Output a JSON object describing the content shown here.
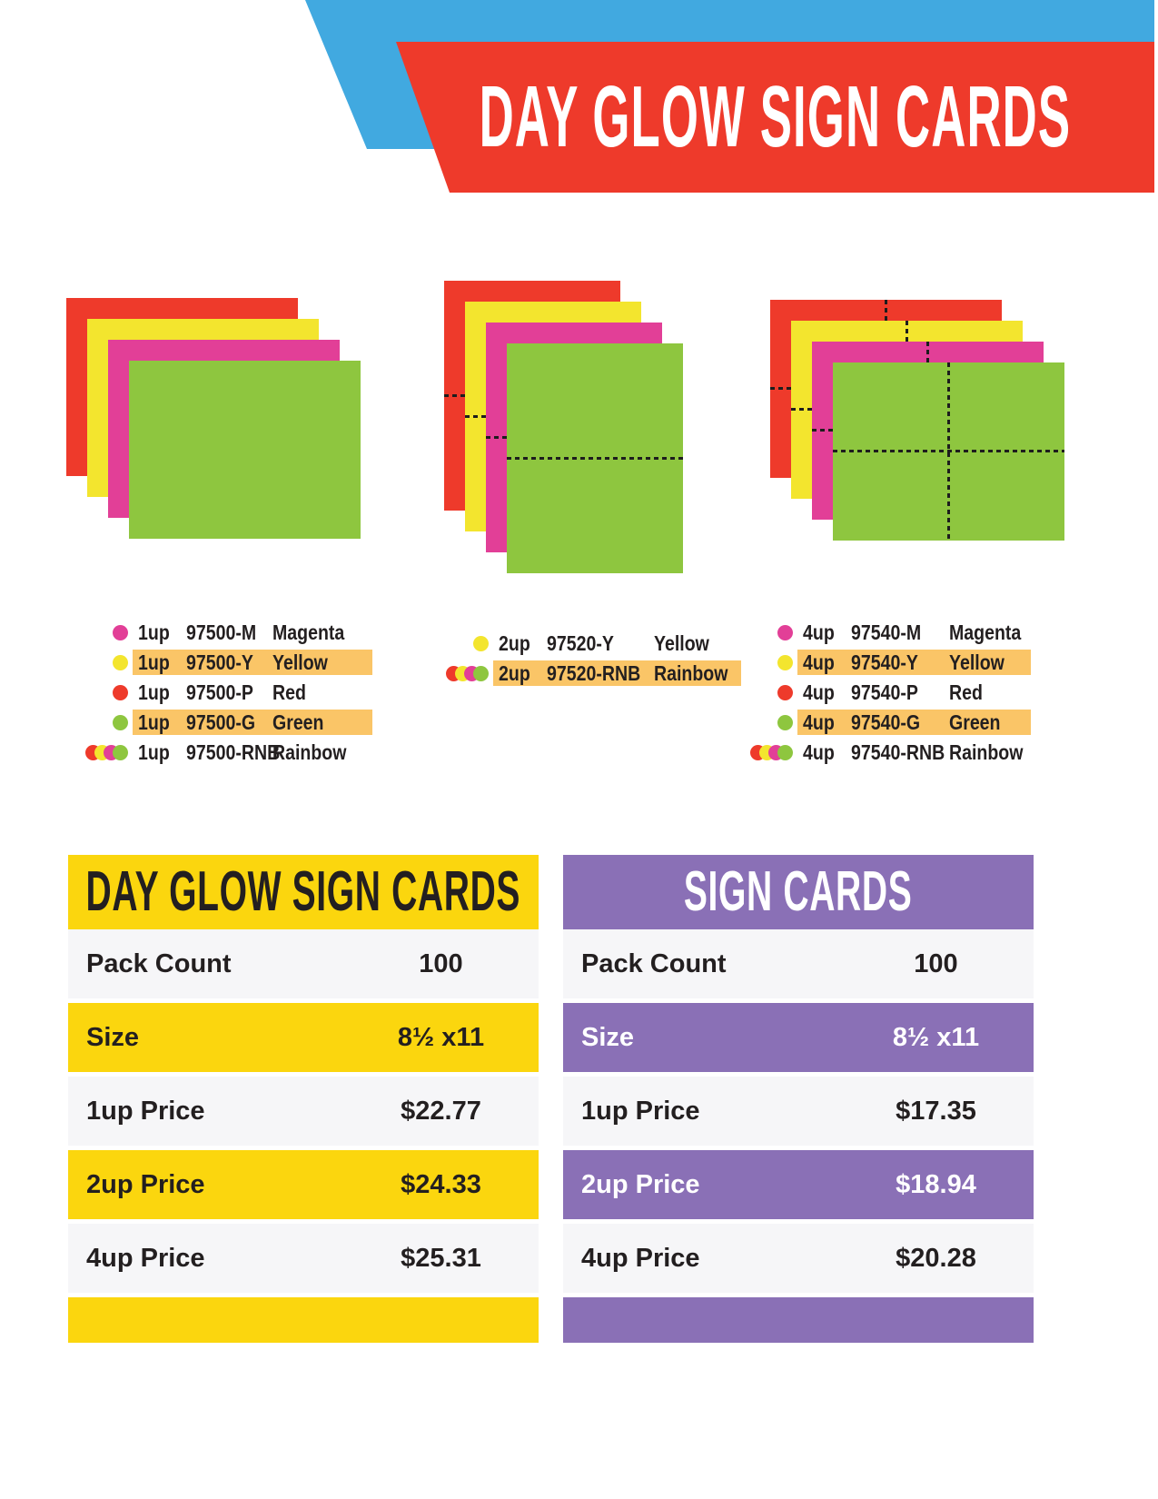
{
  "header": {
    "title": "DAY GLOW SIGN CARDS",
    "title_color": "#ffffff"
  },
  "colors": {
    "red": "#ee3a2b",
    "yellow": "#f3e52e",
    "magenta": "#e23f97",
    "green": "#8ec63f",
    "blue": "#41a9e0",
    "purple": "#8a70b6",
    "table_yellow": "#fbd60e",
    "highlight": "#fac567",
    "row_light": "#f6f6f8",
    "ink": "#231f20"
  },
  "card_order": [
    "red",
    "yellow",
    "magenta",
    "green"
  ],
  "stacks": [
    {
      "label": "1up",
      "orientation": "landscape",
      "dashes": "none"
    },
    {
      "label": "2up",
      "orientation": "portrait",
      "dashes": "horizontal"
    },
    {
      "label": "4up",
      "orientation": "landscape",
      "dashes": "cross"
    }
  ],
  "lists": [
    {
      "items": [
        {
          "dot": "magenta",
          "up": "1up",
          "sku": "97500-M",
          "color_name": "Magenta",
          "highlight": false
        },
        {
          "dot": "yellow",
          "up": "1up",
          "sku": "97500-Y",
          "color_name": "Yellow",
          "highlight": true
        },
        {
          "dot": "red",
          "up": "1up",
          "sku": "97500-P",
          "color_name": "Red",
          "highlight": false
        },
        {
          "dot": "green",
          "up": "1up",
          "sku": "97500-G",
          "color_name": "Green",
          "highlight": true
        },
        {
          "dot": "rainbow",
          "up": "1up",
          "sku": "97500-RNB",
          "color_name": "Rainbow",
          "highlight": false
        }
      ]
    },
    {
      "items": [
        {
          "dot": "yellow",
          "up": "2up",
          "sku": "97520-Y",
          "color_name": "Yellow",
          "highlight": false
        },
        {
          "dot": "rainbow",
          "up": "2up",
          "sku": "97520-RNB",
          "color_name": "Rainbow",
          "highlight": true
        }
      ]
    },
    {
      "items": [
        {
          "dot": "magenta",
          "up": "4up",
          "sku": "97540-M",
          "color_name": "Magenta",
          "highlight": false
        },
        {
          "dot": "yellow",
          "up": "4up",
          "sku": "97540-Y",
          "color_name": "Yellow",
          "highlight": true
        },
        {
          "dot": "red",
          "up": "4up",
          "sku": "97540-P",
          "color_name": "Red",
          "highlight": false
        },
        {
          "dot": "green",
          "up": "4up",
          "sku": "97540-G",
          "color_name": "Green",
          "highlight": true
        },
        {
          "dot": "rainbow",
          "up": "4up",
          "sku": "97540-RNB",
          "color_name": "Rainbow",
          "highlight": false
        }
      ]
    }
  ],
  "tables": [
    {
      "title": "DAY GLOW SIGN CARDS",
      "theme": "yellow",
      "rows": [
        {
          "label": "Pack Count",
          "value": "100"
        },
        {
          "label": "Size",
          "value": "8½ x11"
        },
        {
          "label": "1up Price",
          "value": "$22.77"
        },
        {
          "label": "2up Price",
          "value": "$24.33"
        },
        {
          "label": "4up  Price",
          "value": "$25.31"
        }
      ]
    },
    {
      "title": "SIGN CARDS",
      "theme": "purple",
      "rows": [
        {
          "label": "Pack Count",
          "value": "100"
        },
        {
          "label": "Size",
          "value": "8½ x11"
        },
        {
          "label": "1up Price",
          "value": "$17.35"
        },
        {
          "label": "2up Price",
          "value": "$18.94"
        },
        {
          "label": "4up  Price",
          "value": "$20.28"
        }
      ]
    }
  ]
}
